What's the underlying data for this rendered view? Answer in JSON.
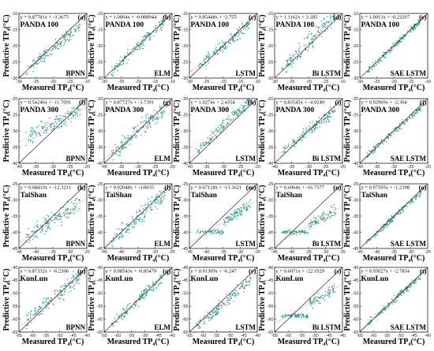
{
  "figure": {
    "x_axis_label": "Measured  TP₄(°C)",
    "y_axis_label": "Predictive  TP₄(°C)",
    "point_color": "#2a9d8f",
    "identity_line_color": "#111111",
    "fit_line_color": "#d9534f"
  },
  "chart_data": [
    {
      "type": "scatter",
      "panel": "(a)",
      "dataset": "PANDA 100",
      "model": "BPNN",
      "equation": "y = 0.87781x + -3.3675",
      "slope": 0.87781,
      "intercept": -3.3675,
      "xlim": [
        -30,
        -10
      ],
      "ylim": [
        -30,
        -10
      ],
      "xticks": [
        -30,
        -25,
        -20,
        -15,
        -10
      ],
      "yticks": [
        -30,
        -25,
        -20,
        -15,
        -10
      ],
      "pattern": "normal"
    },
    {
      "type": "scatter",
      "panel": "(b)",
      "dataset": "PANDA 100",
      "model": "ELM",
      "equation": "y = 1.0004x + -0.088944",
      "slope": 1.0004,
      "intercept": -0.088944,
      "xlim": [
        -30,
        -10
      ],
      "ylim": [
        -30,
        -10
      ],
      "xticks": [
        -30,
        -25,
        -20,
        -15,
        -10
      ],
      "yticks": [
        -30,
        -25,
        -20,
        -15,
        -10
      ],
      "pattern": "normal"
    },
    {
      "type": "scatter",
      "panel": "(c)",
      "dataset": "PANDA 100",
      "model": "LSTM",
      "equation": "y = 0.85448x + -2.755",
      "slope": 0.85448,
      "intercept": -2.755,
      "xlim": [
        -30,
        -10
      ],
      "ylim": [
        -30,
        -10
      ],
      "xticks": [
        -30,
        -25,
        -20,
        -15,
        -10
      ],
      "yticks": [
        -30,
        -25,
        -20,
        -15,
        -10
      ],
      "pattern": "normal"
    },
    {
      "type": "scatter",
      "panel": "(d)",
      "dataset": "PANDA 100",
      "model": "Bi LSTM",
      "equation": "y = 1.1162x + 3.185",
      "slope": 1.1162,
      "intercept": 3.185,
      "xlim": [
        -30,
        -10
      ],
      "ylim": [
        -30,
        -10
      ],
      "xticks": [
        -30,
        -25,
        -20,
        -15,
        -10
      ],
      "yticks": [
        -30,
        -25,
        -20,
        -15,
        -10
      ],
      "pattern": "wide"
    },
    {
      "type": "scatter",
      "panel": "(e)",
      "dataset": "PANDA 100",
      "model": "SAE LSTM",
      "equation": "y = 1.0013x + -0.23207",
      "slope": 1.0013,
      "intercept": -0.23207,
      "xlim": [
        -30,
        -10
      ],
      "ylim": [
        -30,
        -10
      ],
      "xticks": [
        -30,
        -25,
        -20,
        -15,
        -10
      ],
      "yticks": [
        -30,
        -25,
        -20,
        -15,
        -10
      ],
      "pattern": "tight"
    },
    {
      "type": "scatter",
      "panel": "(f)",
      "dataset": "PANDA 300",
      "model": "BPNN",
      "equation": "y = 0.54246x + -11.7091",
      "slope": 0.54246,
      "intercept": -11.7091,
      "xlim": [
        -40,
        -20
      ],
      "ylim": [
        -40,
        -20
      ],
      "xticks": [
        -40,
        -35,
        -30,
        -25,
        -20
      ],
      "yticks": [
        -40,
        -35,
        -30,
        -25,
        -20
      ],
      "pattern": "wide"
    },
    {
      "type": "scatter",
      "panel": "(g)",
      "dataset": "PANDA 300",
      "model": "ELM",
      "equation": "y = 0.87727x + -3.7391",
      "slope": 0.87727,
      "intercept": -3.7391,
      "xlim": [
        -40,
        -20
      ],
      "ylim": [
        -40,
        -20
      ],
      "xticks": [
        -40,
        -35,
        -30,
        -25,
        -20
      ],
      "yticks": [
        -40,
        -35,
        -30,
        -25,
        -20
      ],
      "pattern": "wide"
    },
    {
      "type": "scatter",
      "panel": "(h)",
      "dataset": "PANDA 300",
      "model": "LSTM",
      "equation": "y = 1.0274x + 2.4354",
      "slope": 1.0274,
      "intercept": 2.4354,
      "xlim": [
        -40,
        -20
      ],
      "ylim": [
        -40,
        -20
      ],
      "xticks": [
        -40,
        -35,
        -30,
        -25,
        -20
      ],
      "yticks": [
        -40,
        -35,
        -30,
        -25,
        -20
      ],
      "pattern": "normal"
    },
    {
      "type": "scatter",
      "panel": "(i)",
      "dataset": "PANDA 300",
      "model": "Bi LSTM",
      "equation": "y = 0.83545x + -4.9249",
      "slope": 0.83545,
      "intercept": -4.9249,
      "xlim": [
        -40,
        -20
      ],
      "ylim": [
        -40,
        -20
      ],
      "xticks": [
        -40,
        -35,
        -30,
        -25,
        -20
      ],
      "yticks": [
        -40,
        -35,
        -30,
        -25,
        -20
      ],
      "pattern": "normal"
    },
    {
      "type": "scatter",
      "panel": "(j)",
      "dataset": "PANDA 300",
      "model": "SAE LSTM",
      "equation": "y = 0.92969x + -2.304",
      "slope": 0.92969,
      "intercept": -2.304,
      "xlim": [
        -40,
        -20
      ],
      "ylim": [
        -40,
        -20
      ],
      "xticks": [
        -40,
        -35,
        -30,
        -25,
        -20
      ],
      "yticks": [
        -40,
        -35,
        -30,
        -25,
        -20
      ],
      "pattern": "tight"
    },
    {
      "type": "scatter",
      "panel": "(k)",
      "dataset": "TaiShan",
      "model": "BPNN",
      "equation": "y = 0.68433x + -12.3211",
      "slope": 0.68433,
      "intercept": -12.3211,
      "xlim": [
        -45,
        -25
      ],
      "ylim": [
        -45,
        -25
      ],
      "xticks": [
        -45,
        -40,
        -35,
        -30,
        -25
      ],
      "yticks": [
        -45,
        -40,
        -35,
        -30,
        -25
      ],
      "pattern": "wide"
    },
    {
      "type": "scatter",
      "panel": "(l)",
      "dataset": "TaiShan",
      "model": "ELM",
      "equation": "y = 0.92048x + -3.0035",
      "slope": 0.92048,
      "intercept": -3.0035,
      "xlim": [
        -45,
        -25
      ],
      "ylim": [
        -45,
        -25
      ],
      "xticks": [
        -45,
        -40,
        -35,
        -30,
        -25
      ],
      "yticks": [
        -45,
        -40,
        -35,
        -30,
        -25
      ],
      "pattern": "wide"
    },
    {
      "type": "scatter",
      "panel": "(m)",
      "dataset": "TaiShan",
      "model": "LSTM",
      "equation": "y = 0.67128x + -13.3621",
      "slope": 0.67128,
      "intercept": -13.3621,
      "xlim": [
        -45,
        -25
      ],
      "ylim": [
        -45,
        -25
      ],
      "xticks": [
        -45,
        -40,
        -35,
        -30,
        -25
      ],
      "yticks": [
        -45,
        -40,
        -35,
        -30,
        -25
      ],
      "pattern": "flat"
    },
    {
      "type": "scatter",
      "panel": "(n)",
      "dataset": "TaiShan",
      "model": "Bi LSTM",
      "equation": "y = 0.6064x + -16.7377",
      "slope": 0.6064,
      "intercept": -16.7377,
      "xlim": [
        -45,
        -25
      ],
      "ylim": [
        -45,
        -25
      ],
      "xticks": [
        -45,
        -40,
        -35,
        -30,
        -25
      ],
      "yticks": [
        -45,
        -40,
        -35,
        -30,
        -25
      ],
      "pattern": "flat"
    },
    {
      "type": "scatter",
      "panel": "(o)",
      "dataset": "TaiShan",
      "model": "SAE LSTM",
      "equation": "y = 0.97595x + -1.2398",
      "slope": 0.97595,
      "intercept": -1.2398,
      "xlim": [
        -45,
        -25
      ],
      "ylim": [
        -45,
        -25
      ],
      "xticks": [
        -45,
        -40,
        -35,
        -30,
        -25
      ],
      "yticks": [
        -45,
        -40,
        -35,
        -30,
        -25
      ],
      "pattern": "tight"
    },
    {
      "type": "scatter",
      "panel": "(p)",
      "dataset": "KunLun",
      "model": "BPNN",
      "equation": "y = 0.87332x + -6.2306",
      "slope": 0.87332,
      "intercept": -6.2306,
      "xlim": [
        -65,
        -40
      ],
      "ylim": [
        -65,
        -40
      ],
      "xticks": [
        -65,
        -60,
        -55,
        -50,
        -45,
        -40
      ],
      "yticks": [
        -65,
        -60,
        -55,
        -50,
        -45,
        -40
      ],
      "pattern": "wide"
    },
    {
      "type": "scatter",
      "panel": "(q)",
      "dataset": "KunLun",
      "model": "ELM",
      "equation": "y = 0.98543x + -0.85479",
      "slope": 0.98543,
      "intercept": -0.85479,
      "xlim": [
        -65,
        -40
      ],
      "ylim": [
        -65,
        -40
      ],
      "xticks": [
        -65,
        -60,
        -55,
        -50,
        -45,
        -40
      ],
      "yticks": [
        -65,
        -60,
        -55,
        -50,
        -45,
        -40
      ],
      "pattern": "normal"
    },
    {
      "type": "scatter",
      "panel": "(r)",
      "dataset": "KunLun",
      "model": "LSTM",
      "equation": "y = 0.91309x + -6.247",
      "slope": 0.91309,
      "intercept": -6.247,
      "xlim": [
        -65,
        -40
      ],
      "ylim": [
        -65,
        -40
      ],
      "xticks": [
        -65,
        -60,
        -55,
        -50,
        -45,
        -40
      ],
      "yticks": [
        -65,
        -60,
        -55,
        -50,
        -45,
        -40
      ],
      "pattern": "normal"
    },
    {
      "type": "scatter",
      "panel": "(s)",
      "dataset": "KunLun",
      "model": "Bi LSTM",
      "equation": "y = 0.6071x + -22.1929",
      "slope": 0.6071,
      "intercept": -22.1929,
      "xlim": [
        -65,
        -40
      ],
      "ylim": [
        -65,
        -40
      ],
      "xticks": [
        -65,
        -60,
        -55,
        -50,
        -45,
        -40
      ],
      "yticks": [
        -65,
        -60,
        -55,
        -50,
        -45,
        -40
      ],
      "pattern": "flat"
    },
    {
      "type": "scatter",
      "panel": "(t)",
      "dataset": "KunLun",
      "model": "SAE LSTM",
      "equation": "y = 0.95027x + -2.7854",
      "slope": 0.95027,
      "intercept": -2.7854,
      "xlim": [
        -65,
        -40
      ],
      "ylim": [
        -65,
        -40
      ],
      "xticks": [
        -65,
        -60,
        -55,
        -50,
        -45,
        -40
      ],
      "yticks": [
        -65,
        -60,
        -55,
        -50,
        -45,
        -40
      ],
      "pattern": "tight"
    }
  ]
}
